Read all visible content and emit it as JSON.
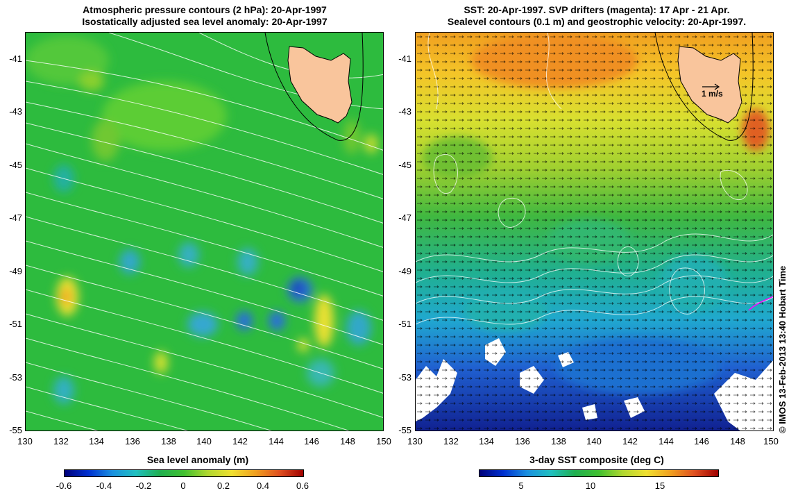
{
  "left_panel": {
    "title_line1": "Atmospheric pressure contours (2 hPa): 20-Apr-1997",
    "title_line2": "Isostatically adjusted sea level anomaly: 20-Apr-1997",
    "colorbar_title": "Sea level anomaly (m)",
    "colorbar_ticks": [
      "-0.6",
      "-0.4",
      "-0.2",
      "0",
      "0.2",
      "0.4",
      "0.6"
    ]
  },
  "right_panel": {
    "title_line1": "SST: 20-Apr-1997. SVP drifters (magenta): 17 Apr - 21 Apr.",
    "title_line2": "Sealevel contours (0.1 m) and geostrophic velocity: 20-Apr-1997.",
    "colorbar_title": "3-day SST composite (deg C)",
    "colorbar_ticks": [
      "5",
      "10",
      "15"
    ],
    "velocity_scale_label": "1 m/s"
  },
  "axes": {
    "lat_ticks": [
      "-41",
      "-43",
      "-45",
      "-47",
      "-49",
      "-51",
      "-53",
      "-55"
    ],
    "lon_ticks": [
      "130",
      "132",
      "134",
      "136",
      "138",
      "140",
      "142",
      "144",
      "146",
      "148",
      "150"
    ]
  },
  "credit": "© IMOS 13-Feb-2013 13:40 Hobart Time",
  "colors": {
    "land": "#f9c59c",
    "sla_base": "#2fbe3c",
    "drifter": "#ff00ff"
  }
}
